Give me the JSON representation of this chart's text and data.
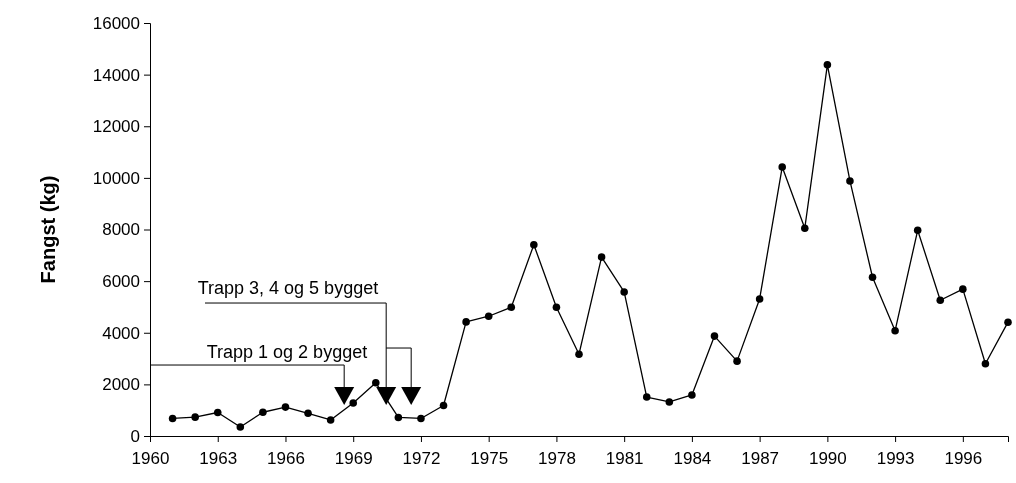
{
  "chart_data": {
    "type": "line",
    "ylabel": "Fangst (kg)",
    "x": [
      1961,
      1962,
      1963,
      1964,
      1965,
      1966,
      1967,
      1968,
      1969,
      1970,
      1971,
      1972,
      1973,
      1974,
      1975,
      1976,
      1977,
      1978,
      1979,
      1980,
      1981,
      1982,
      1983,
      1984,
      1985,
      1986,
      1987,
      1988,
      1989,
      1990,
      1991,
      1992,
      1993,
      1994,
      1995,
      1996,
      1997,
      1998
    ],
    "series": [
      {
        "color": "#000000",
        "values": [
          680,
          730,
          910,
          350,
          920,
          1120,
          880,
          620,
          1280,
          2060,
          720,
          680,
          1180,
          4420,
          4640,
          4990,
          7410,
          4990,
          3170,
          6930,
          5580,
          1510,
          1320,
          1590,
          3870,
          2900,
          5310,
          10420,
          8050,
          14380,
          9880,
          6150,
          4080,
          7970,
          5260,
          5690,
          2800,
          4410
        ]
      }
    ],
    "xlim": [
      1960,
      1998
    ],
    "xticks": [
      1960,
      1963,
      1966,
      1969,
      1972,
      1975,
      1978,
      1981,
      1984,
      1987,
      1990,
      1993,
      1996
    ],
    "ylim": [
      0,
      16000
    ],
    "yticks": [
      0,
      2000,
      4000,
      6000,
      8000,
      10000,
      12000,
      14000,
      16000
    ],
    "marker": "circle",
    "line_style": "solid",
    "grid": false,
    "annotations": [
      {
        "text": "Trapp 1 og 2 bygget",
        "x": 1968.6,
        "y": 1200
      },
      "Trapp 3, 4 og 5 bygget"
    ]
  }
}
